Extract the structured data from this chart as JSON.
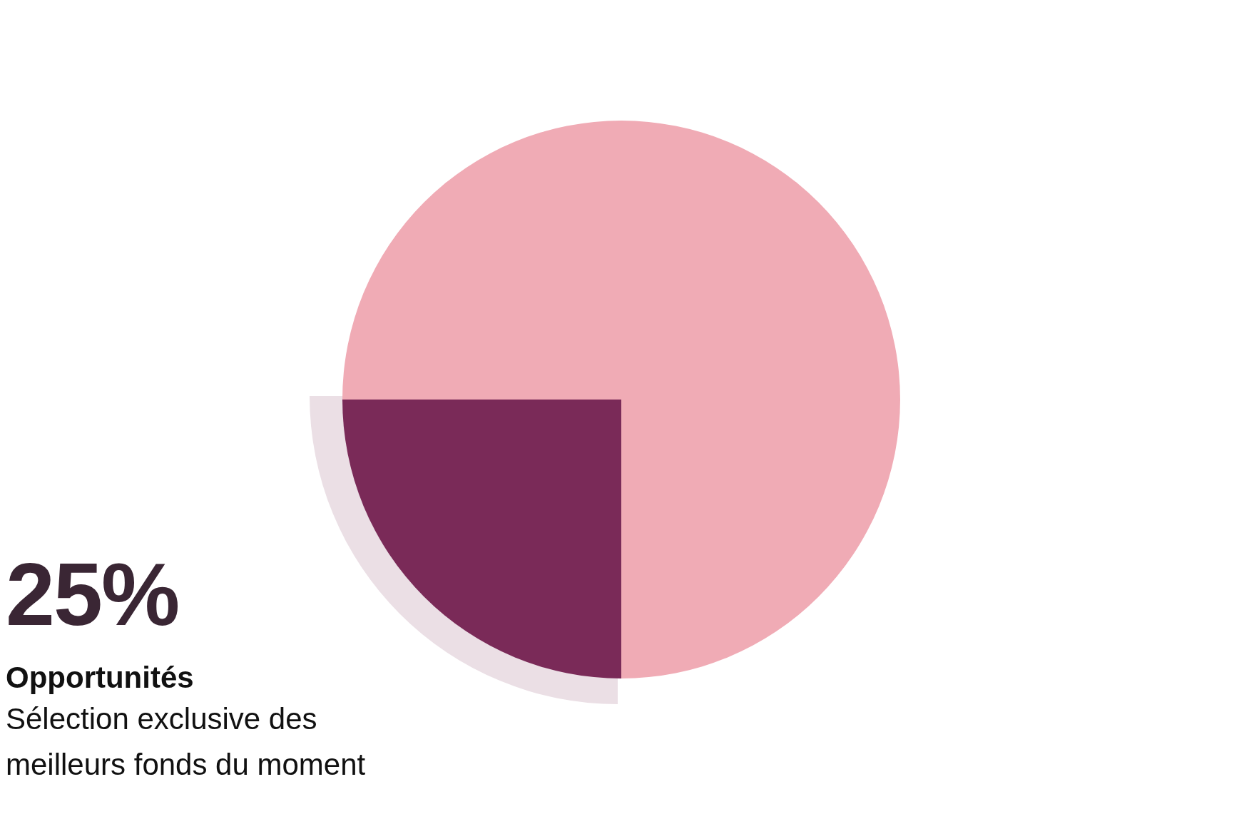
{
  "chart_data": {
    "type": "pie",
    "categories": [
      "Opportunités",
      null
    ],
    "values": [
      25,
      75
    ],
    "colors": [
      "#7a2a58",
      "#f0abb5"
    ],
    "value_labels": [
      "25%",
      null
    ],
    "annotations": [
      "Sélection exclusive des meilleurs fonds du moment"
    ]
  }
}
